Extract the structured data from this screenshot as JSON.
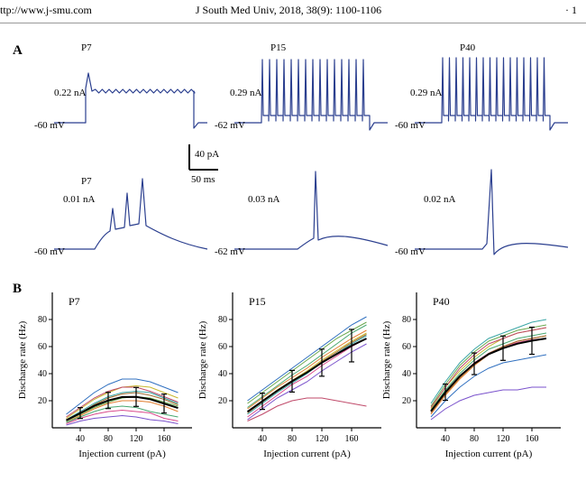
{
  "header": {
    "url": "ttp://www.j-smu.com",
    "citation": "J South Med Univ, 2018, 38(9): 1100-1106",
    "page": "· 1"
  },
  "panelA": {
    "label": "A",
    "scalebar": {
      "x_label": "50 ms",
      "y_label": "40 pA"
    },
    "trace_color": "#2b3f8f",
    "traces": [
      {
        "id": "P7_top",
        "title": "P7",
        "stim": "0.22 nA",
        "baseline": "-60 mV"
      },
      {
        "id": "P15_top",
        "title": "P15",
        "stim": "0.29 nA",
        "baseline": "-62 mV"
      },
      {
        "id": "P40_top",
        "title": "P40",
        "stim": "0.29 nA",
        "baseline": "-60 mV"
      },
      {
        "id": "P7_bot",
        "title": "P7",
        "stim": "0.01 nA",
        "baseline": "-60 mV"
      },
      {
        "id": "P15_bot",
        "title": "",
        "stim": "0.03 nA",
        "baseline": "-62 mV"
      },
      {
        "id": "P40_bot",
        "title": "",
        "stim": "0.02 nA",
        "baseline": "-60 mV"
      }
    ]
  },
  "panelB": {
    "label": "B",
    "xlabel": "Injection current (pA)",
    "ylabel": "Discharge rate (Hz)",
    "xlim": [
      0,
      200
    ],
    "xticks": [
      40,
      80,
      120,
      160
    ],
    "ylim": [
      0,
      100
    ],
    "yticks": [
      20,
      40,
      60,
      80
    ],
    "axis_color": "#000000",
    "tick_fontsize": 10,
    "label_fontsize": 11,
    "mean_color": "#000000",
    "line_colors": [
      "#d94a8c",
      "#e37f2f",
      "#c9b82f",
      "#6aa84f",
      "#3aa6a6",
      "#3070c0",
      "#7a52cc",
      "#c04a6a",
      "#49a870",
      "#a06a2f"
    ],
    "charts": [
      {
        "title": "P7",
        "x": [
          20,
          40,
          60,
          80,
          100,
          120,
          140,
          160,
          180
        ],
        "series": [
          [
            3,
            7,
            10,
            12,
            13,
            12,
            11,
            7,
            5
          ],
          [
            4,
            9,
            14,
            18,
            20,
            20,
            19,
            16,
            12
          ],
          [
            7,
            14,
            21,
            26,
            30,
            31,
            30,
            26,
            22
          ],
          [
            5,
            10,
            15,
            19,
            22,
            23,
            22,
            19,
            16
          ],
          [
            6,
            12,
            18,
            23,
            26,
            27,
            26,
            22,
            18
          ],
          [
            10,
            18,
            26,
            32,
            36,
            36,
            34,
            30,
            26
          ],
          [
            2,
            5,
            7,
            8,
            9,
            8,
            6,
            5,
            3
          ],
          [
            8,
            15,
            22,
            27,
            30,
            30,
            27,
            23,
            19
          ],
          [
            4,
            8,
            12,
            15,
            16,
            15,
            12,
            10,
            8
          ],
          [
            6,
            11,
            17,
            22,
            25,
            26,
            24,
            21,
            17
          ]
        ],
        "mean": [
          5.5,
          10.9,
          16.2,
          20.2,
          22.7,
          22.8,
          21.1,
          17.9,
          14.6
        ],
        "err_x": [
          40,
          80,
          120,
          160
        ],
        "err_y": [
          10.9,
          20.2,
          22.8,
          17.9
        ],
        "err_e": [
          4,
          6,
          7,
          7
        ]
      },
      {
        "title": "P15",
        "x": [
          20,
          40,
          60,
          80,
          100,
          120,
          140,
          160,
          180
        ],
        "series": [
          [
            8,
            16,
            24,
            32,
            38,
            46,
            53,
            60,
            66
          ],
          [
            14,
            22,
            30,
            37,
            44,
            52,
            59,
            66,
            72
          ],
          [
            12,
            20,
            28,
            35,
            42,
            50,
            57,
            64,
            70
          ],
          [
            18,
            26,
            34,
            42,
            50,
            58,
            66,
            72,
            78
          ],
          [
            10,
            18,
            26,
            33,
            40,
            48,
            55,
            62,
            68
          ],
          [
            20,
            28,
            36,
            44,
            52,
            60,
            68,
            76,
            82
          ],
          [
            6,
            14,
            22,
            28,
            34,
            42,
            49,
            56,
            62
          ],
          [
            5,
            10,
            16,
            20,
            22,
            22,
            20,
            18,
            16
          ],
          [
            15,
            23,
            31,
            39,
            46,
            54,
            62,
            70,
            76
          ],
          [
            11,
            19,
            27,
            34,
            41,
            49,
            56,
            63,
            69
          ]
        ],
        "mean": [
          11.9,
          19.6,
          27.4,
          34.4,
          40.9,
          48.1,
          54.5,
          60.7,
          65.9
        ],
        "err_x": [
          40,
          80,
          120,
          160
        ],
        "err_y": [
          19.6,
          34.4,
          48.1,
          60.7
        ],
        "err_e": [
          6,
          8,
          10,
          12
        ]
      },
      {
        "title": "P40",
        "x": [
          20,
          40,
          60,
          80,
          100,
          120,
          140,
          160,
          180
        ],
        "series": [
          [
            12,
            26,
            38,
            48,
            55,
            60,
            63,
            65,
            66
          ],
          [
            10,
            24,
            36,
            46,
            54,
            60,
            64,
            66,
            68
          ],
          [
            14,
            30,
            42,
            52,
            60,
            66,
            70,
            72,
            74
          ],
          [
            16,
            32,
            46,
            56,
            64,
            68,
            72,
            74,
            76
          ],
          [
            18,
            34,
            48,
            58,
            66,
            70,
            74,
            78,
            80
          ],
          [
            8,
            20,
            30,
            38,
            44,
            48,
            50,
            52,
            54
          ],
          [
            6,
            14,
            20,
            24,
            26,
            28,
            28,
            30,
            30
          ],
          [
            15,
            30,
            44,
            54,
            62,
            66,
            70,
            72,
            74
          ],
          [
            13,
            28,
            40,
            50,
            58,
            62,
            66,
            68,
            70
          ],
          [
            11,
            25,
            37,
            47,
            55,
            60,
            64,
            66,
            68
          ]
        ],
        "mean": [
          12.3,
          26.3,
          38.1,
          47.3,
          54.4,
          58.8,
          62.1,
          64.3,
          66.0
        ],
        "err_x": [
          40,
          80,
          120,
          160
        ],
        "err_y": [
          26.3,
          47.3,
          58.8,
          64.3
        ],
        "err_e": [
          6,
          8,
          9,
          10
        ]
      }
    ]
  }
}
